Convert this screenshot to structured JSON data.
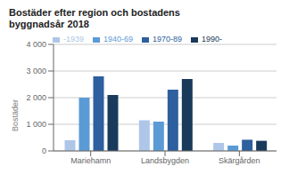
{
  "chart_data": {
    "type": "bar",
    "title": "Bostäder efter region och bostadens\nbyggnadsår 2018",
    "ylabel": "Bostäder",
    "categories": [
      "Mariehamn",
      "Landsbygden",
      "Skärgården"
    ],
    "series": [
      {
        "name": "-1939",
        "color": "#aec6e8",
        "values": [
          400,
          1150,
          300
        ]
      },
      {
        "name": "1940-69",
        "color": "#5b9bd5",
        "values": [
          2000,
          1100,
          200
        ]
      },
      {
        "name": "1970-89",
        "color": "#2e5f9e",
        "values": [
          2800,
          2300,
          420
        ]
      },
      {
        "name": "1990-",
        "color": "#1a3a5c",
        "values": [
          2100,
          2700,
          380
        ]
      }
    ],
    "ylim": [
      0,
      4000
    ],
    "yticks": [
      0,
      {
        "value": 1000,
        "label": "1 000"
      },
      {
        "value": 2000,
        "label": "2 000"
      },
      {
        "value": 3000,
        "label": "3 000"
      },
      {
        "value": 4000,
        "label": "4 000"
      }
    ],
    "grid": true,
    "legend": "top"
  }
}
